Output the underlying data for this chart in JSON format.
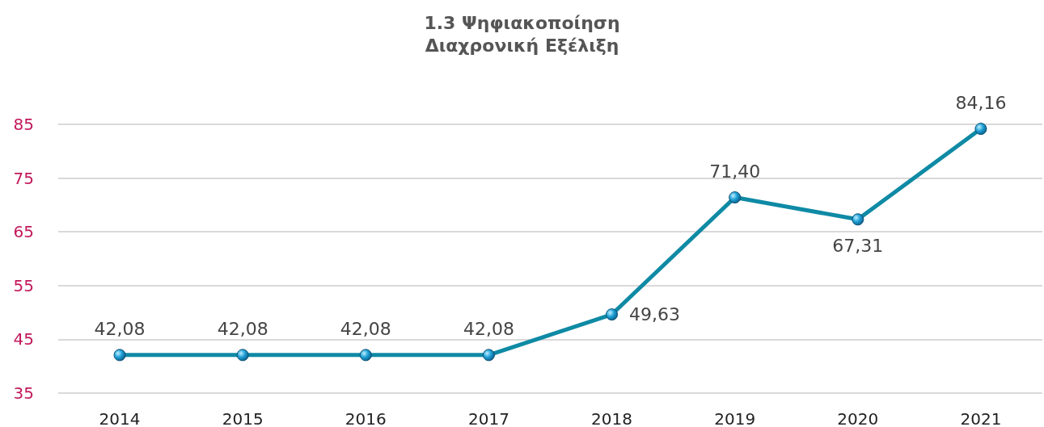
{
  "chart_data": {
    "type": "line",
    "title": "1.3 Ψηφιακοποίηση",
    "subtitle": "Διαχρονική Εξέλιξη",
    "categories": [
      "2014",
      "2015",
      "2016",
      "2017",
      "2018",
      "2019",
      "2020",
      "2021"
    ],
    "series": [
      {
        "color": "#0f8aa5",
        "values": [
          42.08,
          42.08,
          42.08,
          42.08,
          49.63,
          71.4,
          67.31,
          84.16
        ],
        "value_labels": [
          "42,08",
          "42,08",
          "42,08",
          "42,08",
          "49,63",
          "71,40",
          "67,31",
          "84,16"
        ]
      }
    ],
    "ylim": [
      35,
      85
    ],
    "yticks": [
      35,
      45,
      55,
      65,
      75,
      85
    ],
    "grid": "y",
    "marker": "circle",
    "line_style": "solid"
  }
}
